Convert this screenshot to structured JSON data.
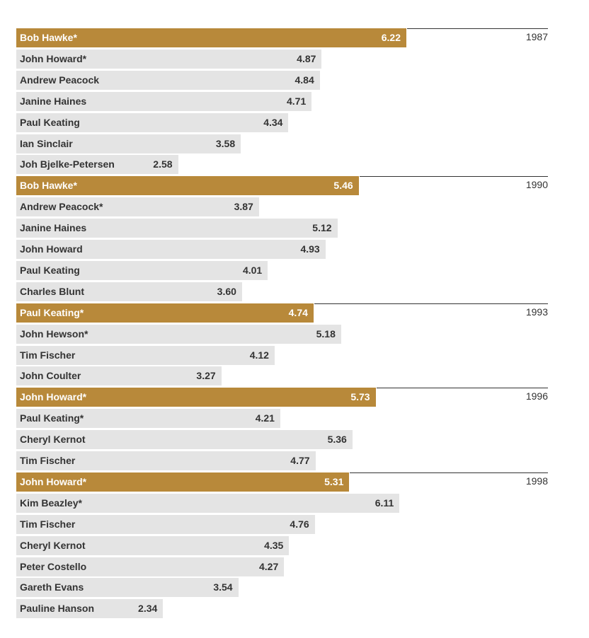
{
  "chart_data": {
    "type": "bar",
    "orientation": "horizontal",
    "xlim": [
      0,
      6.22
    ],
    "groups": [
      {
        "year": "1987",
        "items": [
          {
            "name": "Bob Hawke*",
            "value": 6.22,
            "highlight": true
          },
          {
            "name": "John Howard*",
            "value": 4.87,
            "highlight": false
          },
          {
            "name": "Andrew Peacock",
            "value": 4.84,
            "highlight": false
          },
          {
            "name": "Janine Haines",
            "value": 4.71,
            "highlight": false
          },
          {
            "name": "Paul Keating",
            "value": 4.34,
            "highlight": false
          },
          {
            "name": "Ian Sinclair",
            "value": 3.58,
            "highlight": false
          },
          {
            "name": "Joh Bjelke-Petersen",
            "value": 2.58,
            "highlight": false
          }
        ]
      },
      {
        "year": "1990",
        "items": [
          {
            "name": "Bob Hawke*",
            "value": 5.46,
            "highlight": true
          },
          {
            "name": "Andrew Peacock*",
            "value": 3.87,
            "highlight": false
          },
          {
            "name": "Janine Haines",
            "value": 5.12,
            "highlight": false
          },
          {
            "name": "John Howard",
            "value": 4.93,
            "highlight": false
          },
          {
            "name": "Paul Keating",
            "value": 4.01,
            "highlight": false
          },
          {
            "name": "Charles Blunt",
            "value": 3.6,
            "highlight": false
          }
        ]
      },
      {
        "year": "1993",
        "items": [
          {
            "name": "Paul Keating*",
            "value": 4.74,
            "highlight": true
          },
          {
            "name": "John Hewson*",
            "value": 5.18,
            "highlight": false
          },
          {
            "name": "Tim Fischer",
            "value": 4.12,
            "highlight": false
          },
          {
            "name": "John Coulter",
            "value": 3.27,
            "highlight": false
          }
        ]
      },
      {
        "year": "1996",
        "items": [
          {
            "name": "John Howard*",
            "value": 5.73,
            "highlight": true
          },
          {
            "name": "Paul Keating*",
            "value": 4.21,
            "highlight": false
          },
          {
            "name": "Cheryl Kernot",
            "value": 5.36,
            "highlight": false
          },
          {
            "name": "Tim Fischer",
            "value": 4.77,
            "highlight": false
          }
        ]
      },
      {
        "year": "1998",
        "items": [
          {
            "name": "John Howard*",
            "value": 5.31,
            "highlight": true
          },
          {
            "name": "Kim Beazley*",
            "value": 6.11,
            "highlight": false
          },
          {
            "name": "Tim Fischer",
            "value": 4.76,
            "highlight": false
          },
          {
            "name": "Cheryl Kernot",
            "value": 4.35,
            "highlight": false
          },
          {
            "name": "Peter Costello",
            "value": 4.27,
            "highlight": false
          },
          {
            "name": "Gareth Evans",
            "value": 3.54,
            "highlight": false
          },
          {
            "name": "Pauline Hanson",
            "value": 2.34,
            "highlight": false
          }
        ]
      }
    ]
  },
  "colors": {
    "highlight_bar": "#b8893a",
    "bar": "#e4e4e4",
    "rule": "#333333"
  }
}
